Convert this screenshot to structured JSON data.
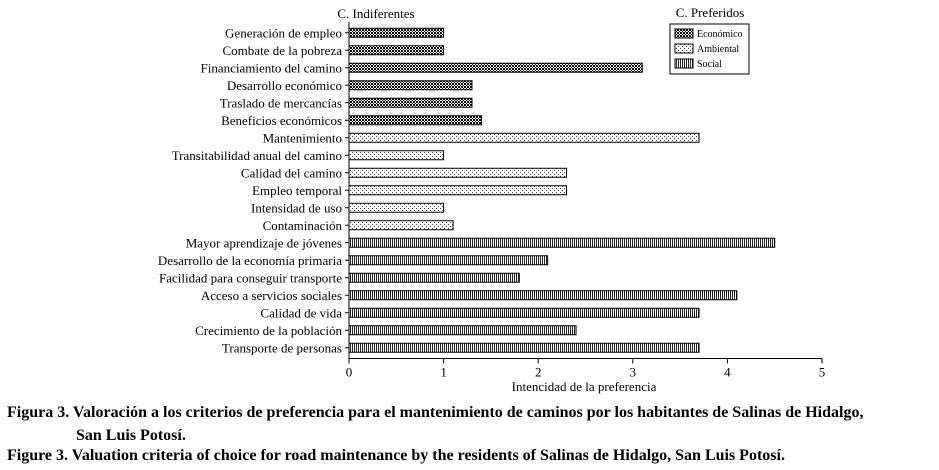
{
  "chart_data": {
    "type": "bar",
    "orientation": "horizontal",
    "categories": [
      "Generación de empleo",
      "Combate de la pobreza",
      "Financiamiento del camino",
      "Desarrollo económico",
      "Traslado de mercancías",
      "Beneficios económicos",
      "Mantenimiento",
      "Transitabilidad anual del camino",
      "Calidad del camino",
      "Empleo temporal",
      "Intensidad de uso",
      "Contaminación",
      "Mayor aprendizaje de jóvenes",
      "Desarrollo de la economía primaria",
      "Facilidad para conseguir transporte",
      "Acceso a servicios sociales",
      "Calidad de vida",
      "Crecimiento de la población",
      "Transporte de personas"
    ],
    "values": [
      1.0,
      1.0,
      3.1,
      1.3,
      1.3,
      1.4,
      3.7,
      1.0,
      2.3,
      2.3,
      1.0,
      1.1,
      4.5,
      2.1,
      1.8,
      4.1,
      3.7,
      2.4,
      3.7
    ],
    "groups": [
      "Económico",
      "Económico",
      "Económico",
      "Económico",
      "Económico",
      "Económico",
      "Ambiental",
      "Ambiental",
      "Ambiental",
      "Ambiental",
      "Ambiental",
      "Ambiental",
      "Social",
      "Social",
      "Social",
      "Social",
      "Social",
      "Social",
      "Social"
    ],
    "xlabel": "Intencidad de la preferencia",
    "ylabel": "",
    "xlim": [
      0,
      5
    ],
    "xticks": [
      "0",
      "1",
      "2",
      "3",
      "4",
      "5"
    ],
    "grid": false,
    "legend": {
      "placement": "top-right",
      "title": "C. Preferidos",
      "entries": [
        "Económico",
        "Ambiental",
        "Social"
      ]
    },
    "annotations": [
      "C. Indiferentes",
      "C. Preferidos"
    ]
  },
  "caption": {
    "es_line1": "Figura 3. Valoración a los criterios de preferencia para el mantenimiento de caminos por los habitantes de Salinas de Hidalgo,",
    "es_line2": "San Luis Potosí.",
    "en": "Figure 3. Valuation criteria of choice for road maintenance by the residents of Salinas de Hidalgo, San Luis Potosí."
  }
}
